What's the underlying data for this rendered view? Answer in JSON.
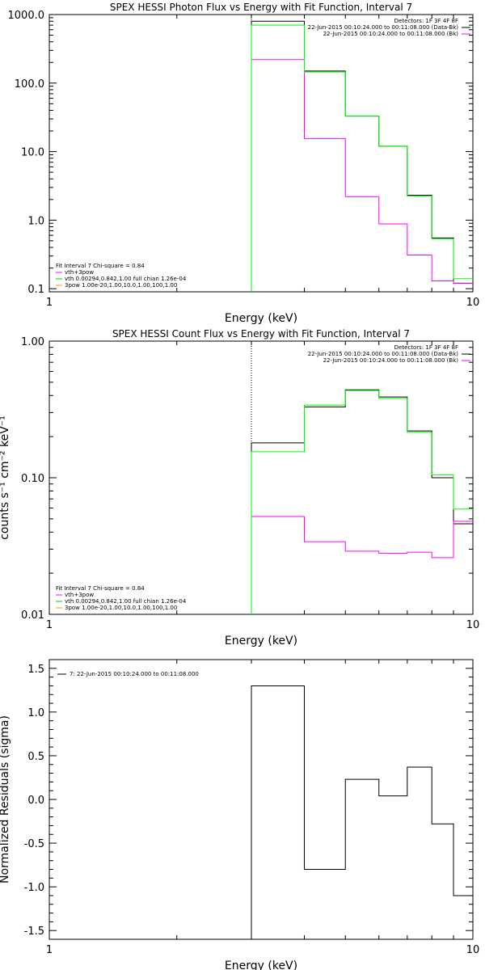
{
  "colors": {
    "data": "#000000",
    "background": "#ff00ff",
    "fit": "#00ff00",
    "fit_green": "#00cc00",
    "fit_orange": "#ff9900"
  },
  "chart_data": [
    {
      "type": "line",
      "step": true,
      "title": "SPEX HESSI Photon Flux vs Energy with Fit Function, Interval 7",
      "xlabel": "Energy (keV)",
      "ylabel": "",
      "xscale": "log",
      "yscale": "log",
      "xlim": [
        1,
        10
      ],
      "ylim": [
        0.09,
        1000
      ],
      "xticks": [
        {
          "value": 1,
          "label": "1"
        },
        {
          "value": 10,
          "label": "10"
        }
      ],
      "yticks": [
        {
          "value": 0.1,
          "label": "0.1"
        },
        {
          "value": 1,
          "label": "1.0"
        },
        {
          "value": 10,
          "label": "10.0"
        },
        {
          "value": 100,
          "label": "100.0"
        },
        {
          "value": 1000,
          "label": "1000.0"
        }
      ],
      "vline": 3,
      "legend_top": [
        "Detectors: 1F 3F 4F 8F",
        "22-Jun-2015 00:10:24.000 to 00:11:08.000 (Data-Bk)",
        "22-Jun-2015 00:10:24.000 to 00:11:08.000 (Bk)"
      ],
      "legend_fit": [
        "Fit Interval  7    Chi-square = 0.84",
        "vth+3pow",
        "vth 0.00294,0.842,1.00   full chian 1.26e-04",
        "3pow 1.00e-20,1.00,10.0,1.00,100,1.00"
      ],
      "series": [
        {
          "name": "Data-Bk",
          "color": "#000000",
          "edges": [
            3,
            4,
            5,
            6,
            7,
            8,
            9,
            10
          ],
          "values": [
            800,
            150,
            33,
            12,
            2.3,
            0.55,
            0.12
          ]
        },
        {
          "name": "Bk",
          "color": "#ff00ff",
          "edges": [
            3,
            4,
            5,
            6,
            7,
            8,
            9,
            10
          ],
          "values": [
            220,
            15.5,
            2.2,
            0.88,
            0.31,
            0.13,
            0.12
          ]
        },
        {
          "name": "vth+3pow",
          "color": "#00ff00",
          "edges": [
            3,
            4,
            5,
            6,
            7,
            8,
            9,
            10
          ],
          "values": [
            700,
            145,
            33,
            12,
            2.25,
            0.53,
            0.14
          ]
        }
      ]
    },
    {
      "type": "line",
      "step": true,
      "title": "SPEX HESSI Count Flux vs Energy with Fit Function, Interval 7",
      "xlabel": "Energy (keV)",
      "ylabel": "counts s⁻¹ cm⁻² keV⁻¹",
      "xscale": "log",
      "yscale": "log",
      "xlim": [
        1,
        10
      ],
      "ylim": [
        0.01,
        1
      ],
      "xticks": [
        {
          "value": 1,
          "label": "1"
        },
        {
          "value": 10,
          "label": "10"
        }
      ],
      "yticks": [
        {
          "value": 0.01,
          "label": "0.01"
        },
        {
          "value": 0.1,
          "label": "0.10"
        },
        {
          "value": 1,
          "label": "1.00"
        }
      ],
      "vline": 3,
      "legend_top": [
        "Detectors: 1F 3F 4F 8F",
        "22-Jun-2015 00:10:24.000 to 00:11:08.000 (Data-Bk)",
        "22-Jun-2015 00:10:24.000 to 00:11:08.000 (Bk)"
      ],
      "legend_fit": [
        "Fit Interval  7    Chi-square = 0.84",
        "vth+3pow",
        "vth 0.00294,0.842,1.00   full chian 1.26e-04",
        "3pow 1.00e-20,1.00,10.0,1.00,100,1.00"
      ],
      "series": [
        {
          "name": "Data-Bk",
          "color": "#000000",
          "edges": [
            3,
            4,
            5,
            6,
            7,
            8,
            9,
            10
          ],
          "values": [
            0.18,
            0.33,
            0.44,
            0.39,
            0.22,
            0.1,
            0.046
          ]
        },
        {
          "name": "Bk",
          "color": "#ff00ff",
          "edges": [
            3,
            4,
            5,
            6,
            7,
            8,
            9,
            10
          ],
          "values": [
            0.052,
            0.034,
            0.029,
            0.028,
            0.0285,
            0.026,
            0.048
          ]
        },
        {
          "name": "vth+3pow",
          "color": "#00ff00",
          "edges": [
            3,
            4,
            5,
            6,
            7,
            8,
            9,
            10
          ],
          "values": [
            0.155,
            0.34,
            0.435,
            0.38,
            0.215,
            0.105,
            0.059
          ]
        }
      ]
    },
    {
      "type": "line",
      "step": true,
      "title": "",
      "xlabel": "Energy (keV)",
      "ylabel": "Normalized Residuals (sigma)",
      "xscale": "log",
      "yscale": "linear",
      "xlim": [
        1,
        10
      ],
      "ylim": [
        -1.6,
        1.6
      ],
      "xticks": [
        {
          "value": 1,
          "label": "1"
        },
        {
          "value": 10,
          "label": "10"
        }
      ],
      "yticks": [
        {
          "value": 1.5,
          "label": "1.5"
        },
        {
          "value": 1.0,
          "label": "1.0"
        },
        {
          "value": 0.5,
          "label": "0.5"
        },
        {
          "value": 0.0,
          "label": "0.0"
        },
        {
          "value": -0.5,
          "label": "-0.5"
        },
        {
          "value": -1.0,
          "label": "-1.0"
        },
        {
          "value": -1.5,
          "label": "-1.5"
        }
      ],
      "legend_top": [],
      "legend_fit": [],
      "legend_left": [
        "7: 22-Jun-2015 00:10:24.000 to 00:11:08.000"
      ],
      "series": [
        {
          "name": "Residuals",
          "color": "#000000",
          "edges": [
            3,
            4,
            5,
            6,
            7,
            8,
            9,
            10
          ],
          "values": [
            1.3,
            -0.8,
            0.23,
            0.04,
            0.37,
            -0.28,
            -1.1
          ],
          "baseline": -1.6
        }
      ]
    }
  ]
}
